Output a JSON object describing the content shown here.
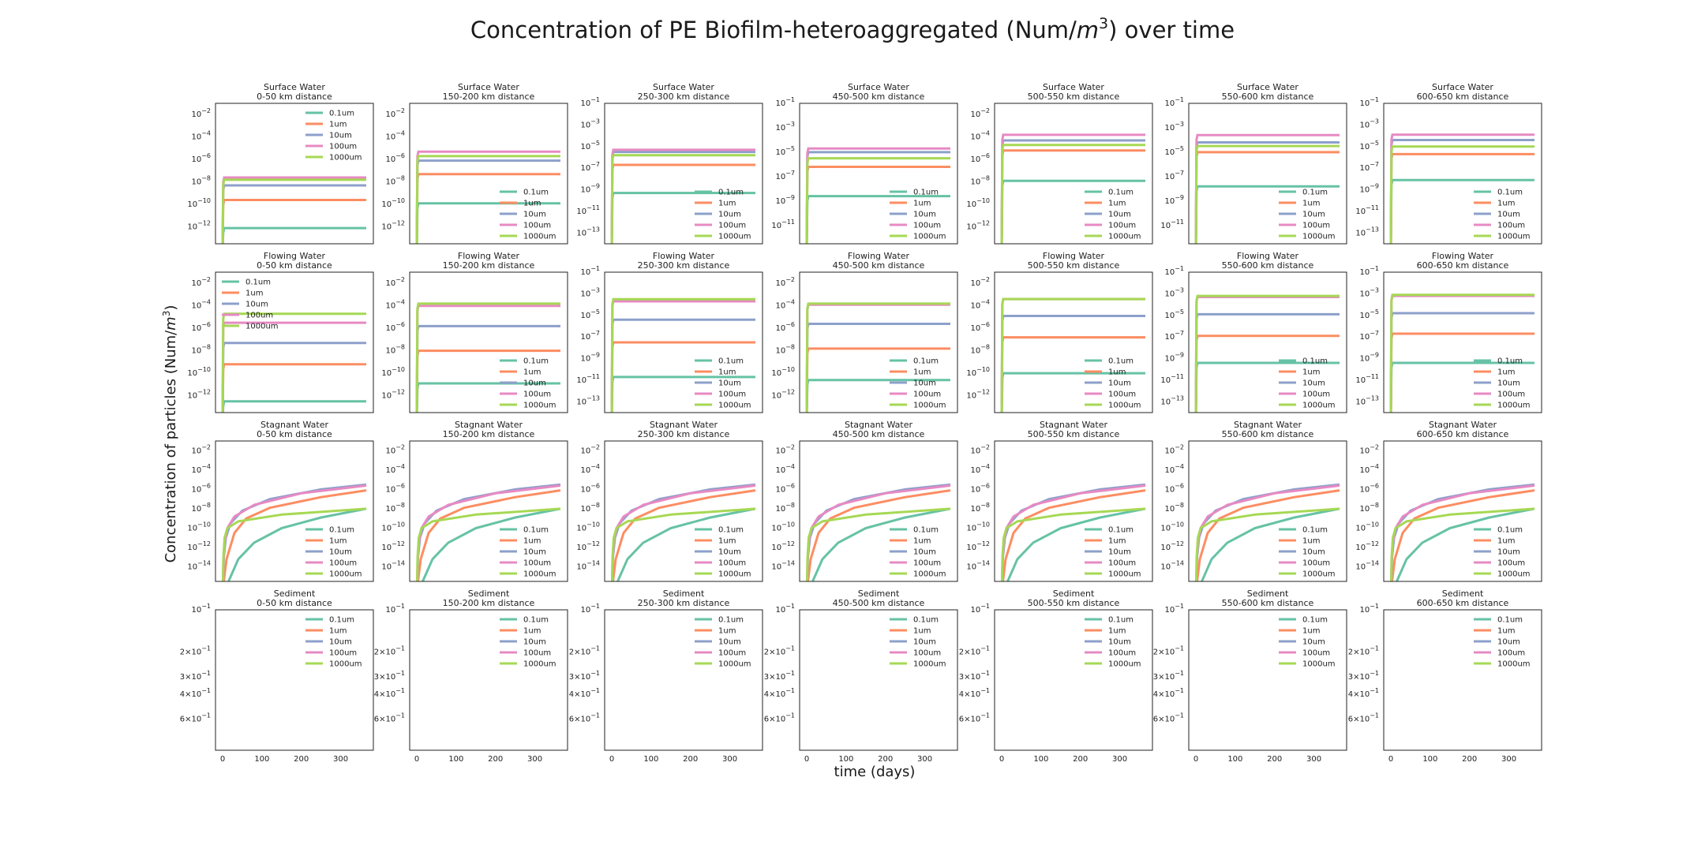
{
  "figure": {
    "title": "Concentration of PE Biofilm-heteroaggregated (Num/m³) over time",
    "title_prefix": "Concentration of PE Biofilm-heteroaggregated (Num/",
    "title_unit_base": "m",
    "title_unit_exp": "3",
    "title_suffix": ") over time",
    "ylabel": "Concentration of particles (Num/m³)",
    "ylabel_prefix": "Concentration of particles (Num/",
    "ylabel_unit_base": "m",
    "ylabel_unit_exp": "3",
    "ylabel_suffix": ")",
    "xlabel": "time (days)"
  },
  "series_colors": {
    "0.1um": "#66c2a5",
    "1um": "#fc8d62",
    "10um": "#8da0cb",
    "100um": "#e78ac3",
    "1000um": "#a6d854"
  },
  "legend_entries": [
    "0.1um",
    "1um",
    "10um",
    "100um",
    "1000um"
  ],
  "compartments": [
    "Surface Water",
    "Flowing Water",
    "Stagnant Water",
    "Sediment"
  ],
  "distances": [
    "0-50 km distance",
    "150-200 km distance",
    "250-300 km distance",
    "450-500 km distance",
    "500-550 km distance",
    "550-600 km distance",
    "600-650 km distance"
  ],
  "x_axis": {
    "range": [
      0,
      365
    ],
    "ticks": [
      0,
      100,
      200,
      300
    ],
    "tick_labels": [
      "0",
      "100",
      "200",
      "300"
    ]
  },
  "chart_data": {
    "type": "line",
    "title": "Concentration of PE Biofilm-heteroaggregated (Num/m³) over time",
    "xlabel": "time (days)",
    "ylabel": "Concentration of particles (Num/m³)",
    "x_unit": "days",
    "y_scale": "log",
    "rows": [
      {
        "compartment": "Surface Water",
        "panels": [
          {
            "distance": "0-50 km distance",
            "ylim_exp": [
              -13.5,
              -1
            ],
            "ytick_exp": [
              -2,
              -4,
              -6,
              -8,
              -10,
              -12
            ],
            "legend": "top-right",
            "steady": {
              "0.1um": -12.1,
              "1um": -9.6,
              "10um": -8.3,
              "100um": -7.6,
              "1000um": -7.8
            }
          },
          {
            "distance": "150-200 km distance",
            "ylim_exp": [
              -13.5,
              -1
            ],
            "ytick_exp": [
              -2,
              -4,
              -6,
              -8,
              -10,
              -12
            ],
            "legend": "bottom-right",
            "steady": {
              "0.1um": -9.9,
              "1um": -7.3,
              "10um": -6.1,
              "100um": -5.3,
              "1000um": -5.7
            }
          },
          {
            "distance": "250-300 km distance",
            "ylim_exp": [
              -14,
              -1
            ],
            "ytick_exp": [
              -1,
              -3,
              -5,
              -7,
              -9,
              -11,
              -13
            ],
            "legend": "bottom-right",
            "steady": {
              "0.1um": -9.3,
              "1um": -6.7,
              "10um": -5.5,
              "100um": -5.3,
              "1000um": -5.8
            }
          },
          {
            "distance": "450-500 km distance",
            "ylim_exp": [
              -12.5,
              -1
            ],
            "ytick_exp": [
              -1,
              -3,
              -5,
              -7,
              -9,
              -11
            ],
            "legend": "bottom-right",
            "steady": {
              "0.1um": -8.6,
              "1um": -6.2,
              "10um": -5.0,
              "100um": -4.7,
              "1000um": -5.5
            }
          },
          {
            "distance": "500-550 km distance",
            "ylim_exp": [
              -13.5,
              -1
            ],
            "ytick_exp": [
              -2,
              -4,
              -6,
              -8,
              -10,
              -12
            ],
            "legend": "bottom-right",
            "steady": {
              "0.1um": -7.9,
              "1um": -5.2,
              "10um": -4.3,
              "100um": -3.8,
              "1000um": -4.7
            }
          },
          {
            "distance": "550-600 km distance",
            "ylim_exp": [
              -12.5,
              -1
            ],
            "ytick_exp": [
              -1,
              -3,
              -5,
              -7,
              -9,
              -11
            ],
            "legend": "bottom-right",
            "steady": {
              "0.1um": -7.8,
              "1um": -5.0,
              "10um": -4.2,
              "100um": -3.6,
              "1000um": -4.5
            }
          },
          {
            "distance": "600-650 km distance",
            "ylim_exp": [
              -14,
              -1
            ],
            "ytick_exp": [
              -1,
              -3,
              -5,
              -7,
              -9,
              -11,
              -13
            ],
            "legend": "bottom-right",
            "steady": {
              "0.1um": -8.1,
              "1um": -5.7,
              "10um": -4.4,
              "100um": -3.9,
              "1000um": -5.0
            }
          }
        ]
      },
      {
        "compartment": "Flowing Water",
        "panels": [
          {
            "distance": "0-50 km distance",
            "ylim_exp": [
              -13.5,
              -1
            ],
            "ytick_exp": [
              -2,
              -4,
              -6,
              -8,
              -10,
              -12
            ],
            "legend": "top-left",
            "steady": {
              "0.1um": -12.5,
              "1um": -9.2,
              "10um": -7.3,
              "100um": -5.5,
              "1000um": -4.7
            }
          },
          {
            "distance": "150-200 km distance",
            "ylim_exp": [
              -13.5,
              -1
            ],
            "ytick_exp": [
              -2,
              -4,
              -6,
              -8,
              -10,
              -12
            ],
            "legend": "bottom-right",
            "steady": {
              "0.1um": -10.9,
              "1um": -8.0,
              "10um": -5.8,
              "100um": -4.0,
              "1000um": -3.8
            }
          },
          {
            "distance": "250-300 km distance",
            "ylim_exp": [
              -14,
              -1
            ],
            "ytick_exp": [
              -1,
              -3,
              -5,
              -7,
              -9,
              -11,
              -13
            ],
            "legend": "bottom-right",
            "steady": {
              "0.1um": -10.7,
              "1um": -7.5,
              "10um": -5.4,
              "100um": -3.7,
              "1000um": -3.5
            }
          },
          {
            "distance": "450-500 km distance",
            "ylim_exp": [
              -13.5,
              -1
            ],
            "ytick_exp": [
              -2,
              -4,
              -6,
              -8,
              -10,
              -12
            ],
            "legend": "bottom-right",
            "steady": {
              "0.1um": -10.6,
              "1um": -7.8,
              "10um": -5.6,
              "100um": -3.9,
              "1000um": -3.8
            }
          },
          {
            "distance": "500-550 km distance",
            "ylim_exp": [
              -13.5,
              -1
            ],
            "ytick_exp": [
              -2,
              -4,
              -6,
              -8,
              -10,
              -12
            ],
            "legend": "bottom-right",
            "steady": {
              "0.1um": -10.0,
              "1um": -6.8,
              "10um": -4.9,
              "100um": -3.4,
              "1000um": -3.4
            }
          },
          {
            "distance": "550-600 km distance",
            "ylim_exp": [
              -14,
              -1
            ],
            "ytick_exp": [
              -1,
              -3,
              -5,
              -7,
              -9,
              -11,
              -13
            ],
            "legend": "bottom-right",
            "steady": {
              "0.1um": -9.4,
              "1um": -6.9,
              "10um": -4.9,
              "100um": -3.3,
              "1000um": -3.2
            }
          },
          {
            "distance": "600-650 km distance",
            "ylim_exp": [
              -14,
              -1
            ],
            "ytick_exp": [
              -1,
              -3,
              -5,
              -7,
              -9,
              -11,
              -13
            ],
            "legend": "bottom-right",
            "steady": {
              "0.1um": -9.4,
              "1um": -6.7,
              "10um": -4.8,
              "100um": -3.2,
              "1000um": -3.1
            }
          }
        ]
      },
      {
        "compartment": "Stagnant Water",
        "panels": [
          {
            "distance": "0-50 km distance",
            "ylim_exp": [
              -15.5,
              -1
            ],
            "ytick_exp": [
              -2,
              -4,
              -6,
              -8,
              -10,
              -12,
              -14
            ],
            "legend": "bottom-right",
            "growing": true
          },
          {
            "distance": "150-200 km distance",
            "ylim_exp": [
              -15.5,
              -1
            ],
            "ytick_exp": [
              -2,
              -4,
              -6,
              -8,
              -10,
              -12,
              -14
            ],
            "legend": "bottom-right",
            "growing": true
          },
          {
            "distance": "250-300 km distance",
            "ylim_exp": [
              -15.5,
              -1
            ],
            "ytick_exp": [
              -2,
              -4,
              -6,
              -8,
              -10,
              -12,
              -14
            ],
            "legend": "bottom-right",
            "growing": true
          },
          {
            "distance": "450-500 km distance",
            "ylim_exp": [
              -15.5,
              -1
            ],
            "ytick_exp": [
              -2,
              -4,
              -6,
              -8,
              -10,
              -12,
              -14
            ],
            "legend": "bottom-right",
            "growing": true
          },
          {
            "distance": "500-550 km distance",
            "ylim_exp": [
              -15.5,
              -1
            ],
            "ytick_exp": [
              -2,
              -4,
              -6,
              -8,
              -10,
              -12,
              -14
            ],
            "legend": "bottom-right",
            "growing": true
          },
          {
            "distance": "550-600 km distance",
            "ylim_exp": [
              -15.5,
              -1
            ],
            "ytick_exp": [
              -2,
              -4,
              -6,
              -8,
              -10,
              -12,
              -14
            ],
            "legend": "bottom-right",
            "growing": true
          },
          {
            "distance": "600-650 km distance",
            "ylim_exp": [
              -15.5,
              -1
            ],
            "ytick_exp": [
              -2,
              -4,
              -6,
              -8,
              -10,
              -12,
              -14
            ],
            "legend": "bottom-right",
            "growing": true
          }
        ]
      },
      {
        "compartment": "Sediment",
        "note": "no data drawn; inverted log axis",
        "ylim": [
          0.1,
          1.0
        ],
        "ytick_labels": [
          "10^-1",
          "2×10^-1",
          "3×10^-1",
          "4×10^-1",
          "6×10^-1"
        ],
        "panels": [
          {
            "distance": "0-50 km distance",
            "legend": "top-right"
          },
          {
            "distance": "150-200 km distance",
            "legend": "top-right"
          },
          {
            "distance": "250-300 km distance",
            "legend": "top-right"
          },
          {
            "distance": "450-500 km distance",
            "legend": "top-right"
          },
          {
            "distance": "500-550 km distance",
            "legend": "top-right"
          },
          {
            "distance": "550-600 km distance",
            "legend": "top-right"
          },
          {
            "distance": "600-650 km distance",
            "legend": "top-right"
          }
        ]
      }
    ],
    "stagnant_profile": {
      "0.1um": [
        [
          15,
          -15.5
        ],
        [
          40,
          -13.2
        ],
        [
          80,
          -11.5
        ],
        [
          150,
          -10.0
        ],
        [
          250,
          -8.9
        ],
        [
          365,
          -8.0
        ]
      ],
      "1um": [
        [
          3,
          -15.5
        ],
        [
          10,
          -13.2
        ],
        [
          30,
          -10.5
        ],
        [
          60,
          -9.0
        ],
        [
          120,
          -7.9
        ],
        [
          250,
          -6.8
        ],
        [
          365,
          -6.1
        ]
      ],
      "10um": [
        [
          1,
          -15.5
        ],
        [
          3,
          -13.0
        ],
        [
          8,
          -11.0
        ],
        [
          20,
          -9.5
        ],
        [
          50,
          -8.2
        ],
        [
          120,
          -7.0
        ],
        [
          250,
          -6.0
        ],
        [
          365,
          -5.5
        ]
      ],
      "100um": [
        [
          1,
          -15.5
        ],
        [
          2,
          -13.5
        ],
        [
          5,
          -11.5
        ],
        [
          12,
          -10.0
        ],
        [
          30,
          -8.8
        ],
        [
          80,
          -7.6
        ],
        [
          200,
          -6.4
        ],
        [
          365,
          -5.6
        ]
      ],
      "1000um": [
        [
          1,
          -15.5
        ],
        [
          2,
          -13.0
        ],
        [
          5,
          -11.0
        ],
        [
          12,
          -10.0
        ],
        [
          40,
          -9.3
        ],
        [
          150,
          -8.6
        ],
        [
          365,
          -8.0
        ]
      ]
    }
  }
}
